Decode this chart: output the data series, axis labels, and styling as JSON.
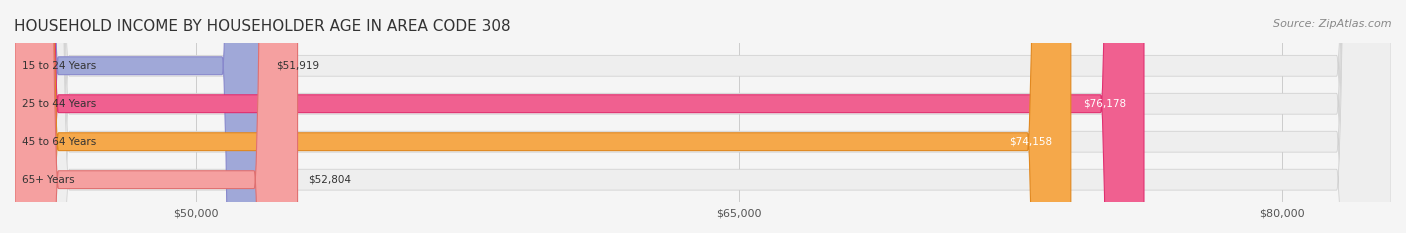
{
  "title": "HOUSEHOLD INCOME BY HOUSEHOLDER AGE IN AREA CODE 308",
  "source": "Source: ZipAtlas.com",
  "categories": [
    "15 to 24 Years",
    "25 to 44 Years",
    "45 to 64 Years",
    "65+ Years"
  ],
  "values": [
    51919,
    76178,
    74158,
    52804
  ],
  "bar_colors": [
    "#a0a8d8",
    "#f06090",
    "#f5a84a",
    "#f5a0a0"
  ],
  "bar_edge_colors": [
    "#8888cc",
    "#e03070",
    "#e08820",
    "#e07070"
  ],
  "label_colors": [
    "#444444",
    "#ffffff",
    "#ffffff",
    "#444444"
  ],
  "x_min": 45000,
  "x_max": 83000,
  "x_ticks": [
    50000,
    65000,
    80000
  ],
  "x_tick_labels": [
    "$50,000",
    "$65,000",
    "$80,000"
  ],
  "background_color": "#f5f5f5",
  "bar_background_color": "#eeeeee",
  "title_fontsize": 11,
  "source_fontsize": 8,
  "bar_height": 0.55
}
